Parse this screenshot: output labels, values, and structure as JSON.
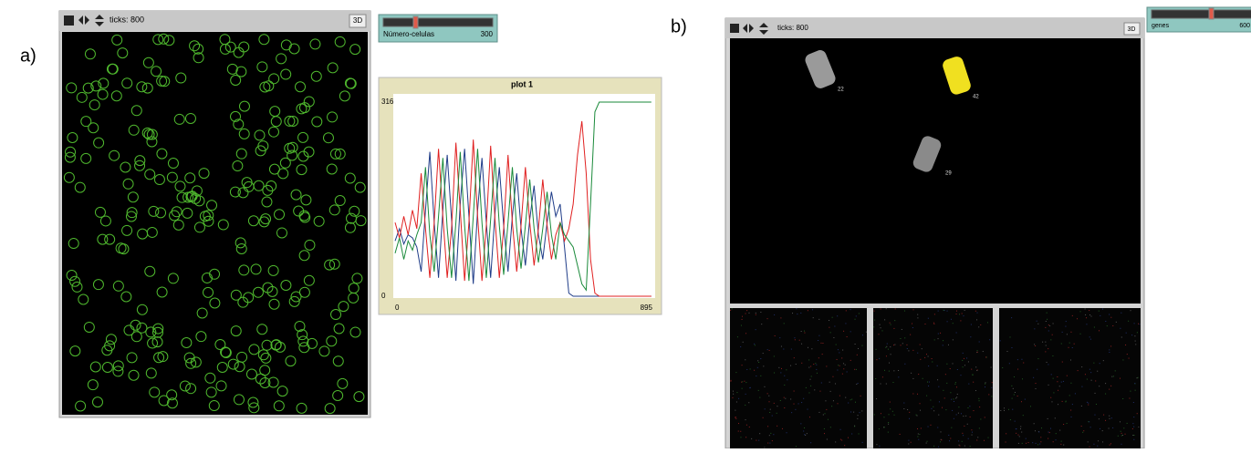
{
  "labels": {
    "a": "a)",
    "b": "b)"
  },
  "panel_a": {
    "title_bar": {
      "ticks": "ticks: 800",
      "button": "3D"
    },
    "slider": {
      "label": "Número-celulas",
      "value": 300
    },
    "plot": {
      "type": "line",
      "title": "plot 1",
      "xlim": [
        0,
        895
      ],
      "xticks": [
        0,
        895
      ],
      "ylim": [
        0,
        316
      ],
      "yticks": [
        0,
        316
      ],
      "x": [
        0,
        15,
        30,
        45,
        60,
        75,
        90,
        105,
        120,
        135,
        150,
        165,
        180,
        195,
        210,
        225,
        240,
        255,
        270,
        285,
        300,
        315,
        330,
        345,
        360,
        375,
        390,
        405,
        420,
        435,
        450,
        465,
        480,
        495,
        510,
        525,
        540,
        555,
        570,
        585,
        600,
        615,
        630,
        645,
        660,
        675,
        690,
        705,
        720,
        735,
        750,
        765,
        780,
        795,
        810,
        825,
        840,
        855,
        870,
        885
      ],
      "series": [
        {
          "color": "#1f3c88",
          "values": [
            90,
            110,
            85,
            100,
            95,
            80,
            40,
            140,
            235,
            120,
            30,
            140,
            230,
            125,
            25,
            150,
            240,
            130,
            20,
            140,
            225,
            120,
            30,
            135,
            210,
            115,
            40,
            130,
            200,
            110,
            50,
            125,
            180,
            100,
            60,
            120,
            170,
            130,
            150,
            80,
            5,
            0,
            0,
            0,
            0,
            0,
            0,
            0,
            0,
            0,
            0,
            0,
            0,
            0,
            0,
            0,
            0,
            0,
            0,
            0
          ]
        },
        {
          "color": "#e02020",
          "values": [
            120,
            95,
            130,
            100,
            140,
            110,
            200,
            110,
            30,
            120,
            240,
            130,
            30,
            110,
            250,
            140,
            25,
            120,
            255,
            130,
            25,
            115,
            245,
            125,
            30,
            110,
            230,
            120,
            40,
            115,
            210,
            120,
            50,
            110,
            190,
            115,
            60,
            100,
            120,
            90,
            110,
            150,
            230,
            285,
            200,
            60,
            5,
            0,
            0,
            0,
            0,
            0,
            0,
            0,
            0,
            0,
            0,
            0,
            0,
            0
          ]
        },
        {
          "color": "#1a8a3a",
          "values": [
            70,
            95,
            60,
            90,
            75,
            100,
            120,
            210,
            100,
            40,
            130,
            225,
            110,
            30,
            120,
            235,
            115,
            25,
            130,
            240,
            120,
            30,
            125,
            225,
            115,
            35,
            120,
            210,
            110,
            45,
            115,
            190,
            110,
            55,
            110,
            170,
            100,
            60,
            120,
            100,
            90,
            80,
            50,
            20,
            10,
            150,
            300,
            316,
            316,
            316,
            316,
            316,
            316,
            316,
            316,
            316,
            316,
            316,
            316,
            316
          ]
        }
      ]
    }
  },
  "panel_b": {
    "title_bar": {
      "ticks": "ticks: 800",
      "button": "3D"
    },
    "agents": [
      {
        "label": 22
      },
      {
        "label": 42
      },
      {
        "label": 29
      }
    ],
    "slider": {
      "label": "genes",
      "value": 600
    }
  }
}
